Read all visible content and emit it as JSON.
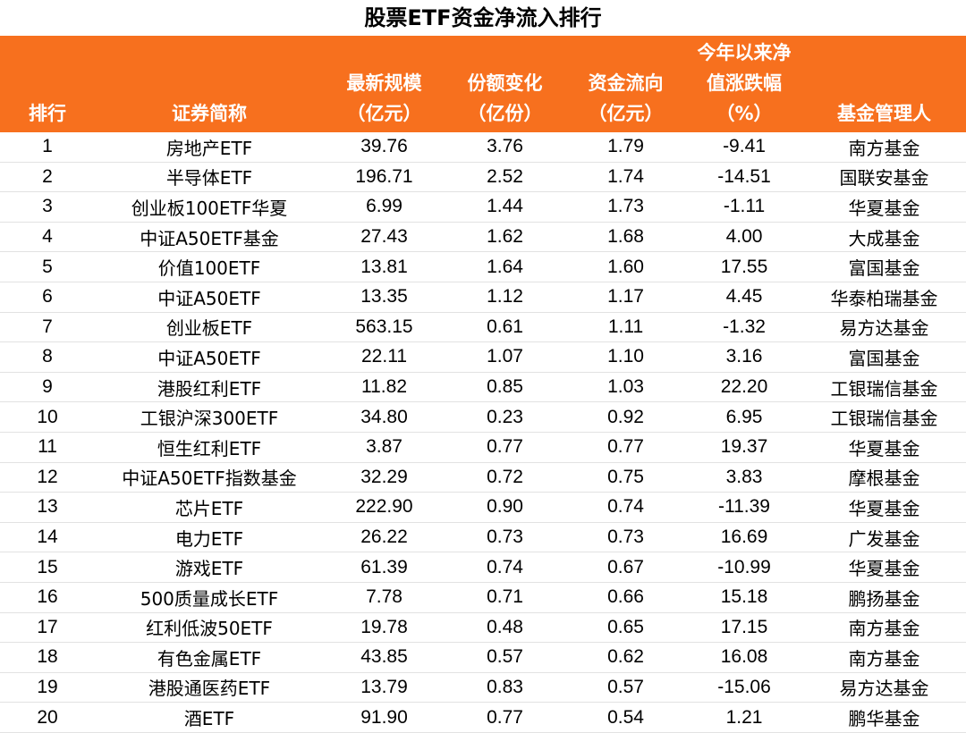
{
  "title": "股票ETF资金净流入排行",
  "headers": {
    "rank": [
      "排行"
    ],
    "name": [
      "证券简称"
    ],
    "scale": [
      "最新规模",
      "（亿元）"
    ],
    "share": [
      "份额变化",
      "（亿份）"
    ],
    "flow": [
      "资金流向",
      "（亿元）"
    ],
    "ytd": [
      "今年以来净",
      "值涨跌幅",
      "（%）"
    ],
    "manager": [
      "基金管理人"
    ]
  },
  "rows": [
    {
      "rank": "1",
      "name": "房地产ETF",
      "scale": "39.76",
      "share": "3.76",
      "flow": "1.79",
      "ytd": "-9.41",
      "manager": "南方基金"
    },
    {
      "rank": "2",
      "name": "半导体ETF",
      "scale": "196.71",
      "share": "2.52",
      "flow": "1.74",
      "ytd": "-14.51",
      "manager": "国联安基金"
    },
    {
      "rank": "3",
      "name": "创业板100ETF华夏",
      "scale": "6.99",
      "share": "1.44",
      "flow": "1.73",
      "ytd": "-1.11",
      "manager": "华夏基金"
    },
    {
      "rank": "4",
      "name": "中证A50ETF基金",
      "scale": "27.43",
      "share": "1.62",
      "flow": "1.68",
      "ytd": "4.00",
      "manager": "大成基金"
    },
    {
      "rank": "5",
      "name": "价值100ETF",
      "scale": "13.81",
      "share": "1.64",
      "flow": "1.60",
      "ytd": "17.55",
      "manager": "富国基金"
    },
    {
      "rank": "6",
      "name": "中证A50ETF",
      "scale": "13.35",
      "share": "1.12",
      "flow": "1.17",
      "ytd": "4.45",
      "manager": "华泰柏瑞基金"
    },
    {
      "rank": "7",
      "name": "创业板ETF",
      "scale": "563.15",
      "share": "0.61",
      "flow": "1.11",
      "ytd": "-1.32",
      "manager": "易方达基金"
    },
    {
      "rank": "8",
      "name": "中证A50ETF",
      "scale": "22.11",
      "share": "1.07",
      "flow": "1.10",
      "ytd": "3.16",
      "manager": "富国基金"
    },
    {
      "rank": "9",
      "name": "港股红利ETF",
      "scale": "11.82",
      "share": "0.85",
      "flow": "1.03",
      "ytd": "22.20",
      "manager": "工银瑞信基金"
    },
    {
      "rank": "10",
      "name": "工银沪深300ETF",
      "scale": "34.80",
      "share": "0.23",
      "flow": "0.92",
      "ytd": "6.95",
      "manager": "工银瑞信基金"
    },
    {
      "rank": "11",
      "name": "恒生红利ETF",
      "scale": "3.87",
      "share": "0.77",
      "flow": "0.77",
      "ytd": "19.37",
      "manager": "华夏基金"
    },
    {
      "rank": "12",
      "name": "中证A50ETF指数基金",
      "scale": "32.29",
      "share": "0.72",
      "flow": "0.75",
      "ytd": "3.83",
      "manager": "摩根基金"
    },
    {
      "rank": "13",
      "name": "芯片ETF",
      "scale": "222.90",
      "share": "0.90",
      "flow": "0.74",
      "ytd": "-11.39",
      "manager": "华夏基金"
    },
    {
      "rank": "14",
      "name": "电力ETF",
      "scale": "26.22",
      "share": "0.73",
      "flow": "0.73",
      "ytd": "16.69",
      "manager": "广发基金"
    },
    {
      "rank": "15",
      "name": "游戏ETF",
      "scale": "61.39",
      "share": "0.74",
      "flow": "0.67",
      "ytd": "-10.99",
      "manager": "华夏基金"
    },
    {
      "rank": "16",
      "name": "500质量成长ETF",
      "scale": "7.78",
      "share": "0.71",
      "flow": "0.66",
      "ytd": "15.18",
      "manager": "鹏扬基金"
    },
    {
      "rank": "17",
      "name": "红利低波50ETF",
      "scale": "19.78",
      "share": "0.48",
      "flow": "0.65",
      "ytd": "17.15",
      "manager": "南方基金"
    },
    {
      "rank": "18",
      "name": "有色金属ETF",
      "scale": "43.85",
      "share": "0.57",
      "flow": "0.62",
      "ytd": "16.08",
      "manager": "南方基金"
    },
    {
      "rank": "19",
      "name": "港股通医药ETF",
      "scale": "13.79",
      "share": "0.83",
      "flow": "0.57",
      "ytd": "-15.06",
      "manager": "易方达基金"
    },
    {
      "rank": "20",
      "name": "酒ETF",
      "scale": "91.90",
      "share": "0.77",
      "flow": "0.54",
      "ytd": "1.21",
      "manager": "鹏华基金"
    }
  ],
  "colors": {
    "header_bg": "#f7701e",
    "header_text": "#ffffff"
  }
}
